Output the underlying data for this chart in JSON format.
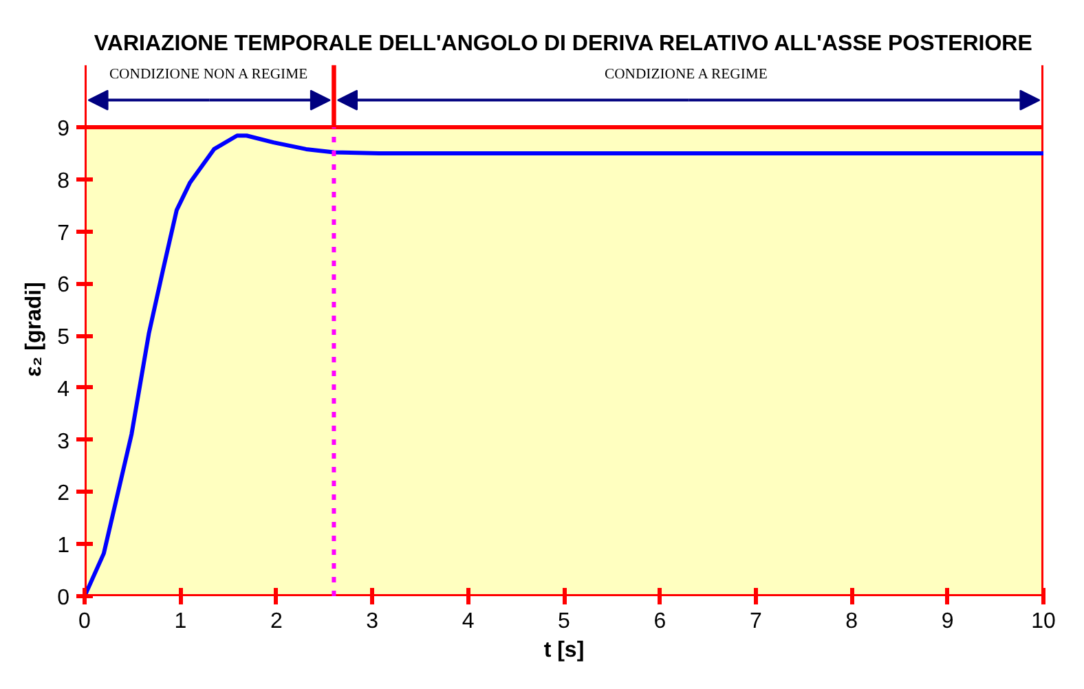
{
  "chart_data": {
    "type": "line",
    "title": "VARIAZIONE TEMPORALE DELL'ANGOLO DI DERIVA RELATIVO ALL'ASSE POSTERIORE",
    "xlabel": "t [s]",
    "ylabel": "ε₂ [gradi]",
    "x": [
      0,
      0.2,
      0.49,
      0.67,
      0.82,
      0.96,
      1.1,
      1.35,
      1.59,
      1.69,
      1.97,
      2.31,
      2.6,
      3.07,
      4,
      6,
      8,
      10
    ],
    "series": [
      {
        "color": "#0000ff",
        "values": [
          0,
          0.82,
          3.11,
          5.04,
          6.28,
          7.41,
          7.94,
          8.58,
          8.84,
          8.84,
          8.71,
          8.58,
          8.52,
          8.5,
          8.5,
          8.5,
          8.5,
          8.5
        ]
      }
    ],
    "xlim": [
      0,
      10
    ],
    "ylim": [
      0,
      9
    ],
    "xticks": [
      0,
      1,
      2,
      3,
      4,
      5,
      6,
      7,
      8,
      9,
      10
    ],
    "yticks": [
      0,
      1,
      2,
      3,
      4,
      5,
      6,
      7,
      8,
      9
    ],
    "ref_lines": [
      {
        "axis": "x",
        "value": 2.6,
        "color": "#ff00ff",
        "line_style": "dotted"
      }
    ],
    "annotations": [
      "CONDIZIONE NON A REGIME",
      "CONDIZIONE  A REGIME"
    ],
    "grid": false,
    "marker": "none",
    "line_style": "solid"
  }
}
